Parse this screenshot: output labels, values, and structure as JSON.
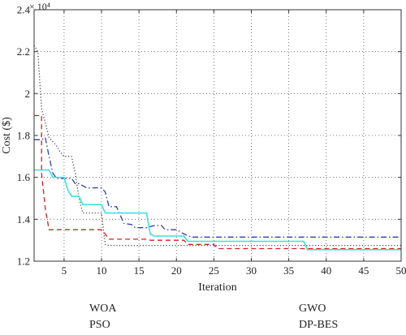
{
  "chart_data": {
    "type": "line",
    "xlabel": "Iteration",
    "ylabel": "Cost ($)",
    "y_exponent_label": "× 10⁴",
    "xlim": [
      1,
      50
    ],
    "ylim": [
      1.2,
      2.4
    ],
    "x_ticks": [
      5,
      10,
      15,
      20,
      25,
      30,
      35,
      40,
      45,
      50
    ],
    "y_ticks": [
      1.2,
      1.4,
      1.6,
      1.8,
      2.0,
      2.2,
      2.4
    ],
    "y_tick_labels": [
      "1.2",
      "1.4",
      "1.6",
      "1.8",
      "2",
      "2.2",
      "2.4"
    ],
    "grid": true,
    "legend_position": "bottom",
    "series": [
      {
        "name": "WOA",
        "color": "#2e3fa8",
        "style": "dashdot",
        "points": [
          [
            1,
            1.78
          ],
          [
            2,
            1.78
          ],
          [
            2.5,
            1.79
          ],
          [
            3,
            1.7
          ],
          [
            3.5,
            1.62
          ],
          [
            4,
            1.595
          ],
          [
            5,
            1.595
          ],
          [
            6,
            1.595
          ],
          [
            6.5,
            1.57
          ],
          [
            7,
            1.57
          ],
          [
            8,
            1.55
          ],
          [
            9,
            1.55
          ],
          [
            10,
            1.55
          ],
          [
            10.5,
            1.53
          ],
          [
            11,
            1.46
          ],
          [
            12,
            1.46
          ],
          [
            12.5,
            1.42
          ],
          [
            13,
            1.38
          ],
          [
            14,
            1.375
          ],
          [
            14.5,
            1.36
          ],
          [
            15,
            1.36
          ],
          [
            16,
            1.36
          ],
          [
            17,
            1.37
          ],
          [
            18,
            1.37
          ],
          [
            18.5,
            1.35
          ],
          [
            19,
            1.35
          ],
          [
            20,
            1.35
          ],
          [
            21,
            1.33
          ],
          [
            22,
            1.315
          ],
          [
            50,
            1.315
          ]
        ]
      },
      {
        "name": "PSO",
        "color": "#cc2222",
        "style": "dashed",
        "points": [
          [
            1,
            1.895
          ],
          [
            2,
            1.895
          ],
          [
            2,
            1.62
          ],
          [
            2.5,
            1.45
          ],
          [
            3,
            1.35
          ],
          [
            4,
            1.35
          ],
          [
            10,
            1.35
          ],
          [
            10.5,
            1.33
          ],
          [
            11,
            1.305
          ],
          [
            16,
            1.305
          ],
          [
            16.5,
            1.3
          ],
          [
            21,
            1.3
          ],
          [
            21.5,
            1.28
          ],
          [
            22,
            1.28
          ],
          [
            25,
            1.28
          ],
          [
            25.5,
            1.26
          ],
          [
            50,
            1.26
          ]
        ]
      },
      {
        "name": "GWO",
        "color": "#444444",
        "style": "dotted",
        "points": [
          [
            1,
            2.23
          ],
          [
            1.5,
            2.2
          ],
          [
            2,
            1.93
          ],
          [
            2.5,
            1.86
          ],
          [
            3,
            1.79
          ],
          [
            4,
            1.75
          ],
          [
            4.5,
            1.72
          ],
          [
            5,
            1.7
          ],
          [
            6,
            1.7
          ],
          [
            6.5,
            1.62
          ],
          [
            7,
            1.5
          ],
          [
            7.5,
            1.43
          ],
          [
            10,
            1.43
          ],
          [
            10.5,
            1.28
          ],
          [
            11,
            1.275
          ],
          [
            50,
            1.275
          ]
        ]
      },
      {
        "name": "DP-BES",
        "color": "#3de0e0",
        "style": "solid",
        "points": [
          [
            1,
            1.635
          ],
          [
            3,
            1.635
          ],
          [
            3.5,
            1.6
          ],
          [
            5,
            1.6
          ],
          [
            5.5,
            1.54
          ],
          [
            6,
            1.51
          ],
          [
            7,
            1.51
          ],
          [
            7.5,
            1.47
          ],
          [
            10,
            1.47
          ],
          [
            10.5,
            1.43
          ],
          [
            16,
            1.43
          ],
          [
            16.5,
            1.33
          ],
          [
            17,
            1.32
          ],
          [
            21,
            1.32
          ],
          [
            21.5,
            1.295
          ],
          [
            37,
            1.295
          ],
          [
            37.5,
            1.255
          ],
          [
            50,
            1.255
          ]
        ]
      }
    ]
  }
}
